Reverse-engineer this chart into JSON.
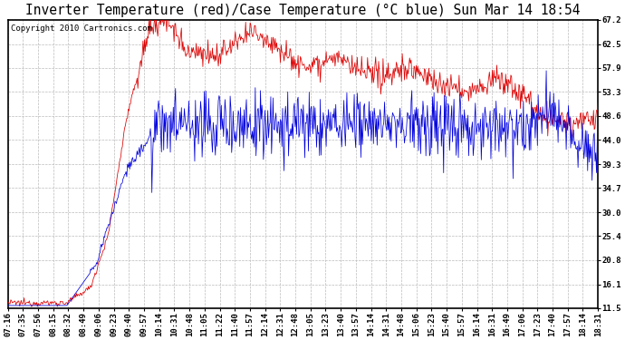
{
  "title": "Inverter Temperature (red)/Case Temperature (°C blue) Sun Mar 14 18:54",
  "copyright": "Copyright 2010 Cartronics.com",
  "yticks": [
    11.5,
    16.1,
    20.8,
    25.4,
    30.0,
    34.7,
    39.3,
    44.0,
    48.6,
    53.3,
    57.9,
    62.5,
    67.2
  ],
  "ylim": [
    11.5,
    67.2
  ],
  "red_color": "#dd0000",
  "blue_color": "#0000dd",
  "bg_color": "#ffffff",
  "plot_bg_color": "#ffffff",
  "grid_color": "#bbbbbb",
  "title_fontsize": 10.5,
  "copyright_fontsize": 6.5,
  "tick_fontsize": 6.5,
  "xtick_labels": [
    "07:16",
    "07:35",
    "07:56",
    "08:15",
    "08:32",
    "08:49",
    "09:06",
    "09:23",
    "09:40",
    "09:57",
    "10:14",
    "10:31",
    "10:48",
    "11:05",
    "11:22",
    "11:40",
    "11:57",
    "12:14",
    "12:31",
    "12:48",
    "13:05",
    "13:23",
    "13:40",
    "13:57",
    "14:14",
    "14:31",
    "14:48",
    "15:06",
    "15:23",
    "15:40",
    "15:57",
    "16:14",
    "16:31",
    "16:49",
    "17:06",
    "17:23",
    "17:40",
    "17:57",
    "18:14",
    "18:31"
  ],
  "n_points": 800,
  "figwidth": 6.9,
  "figheight": 3.75,
  "dpi": 100
}
